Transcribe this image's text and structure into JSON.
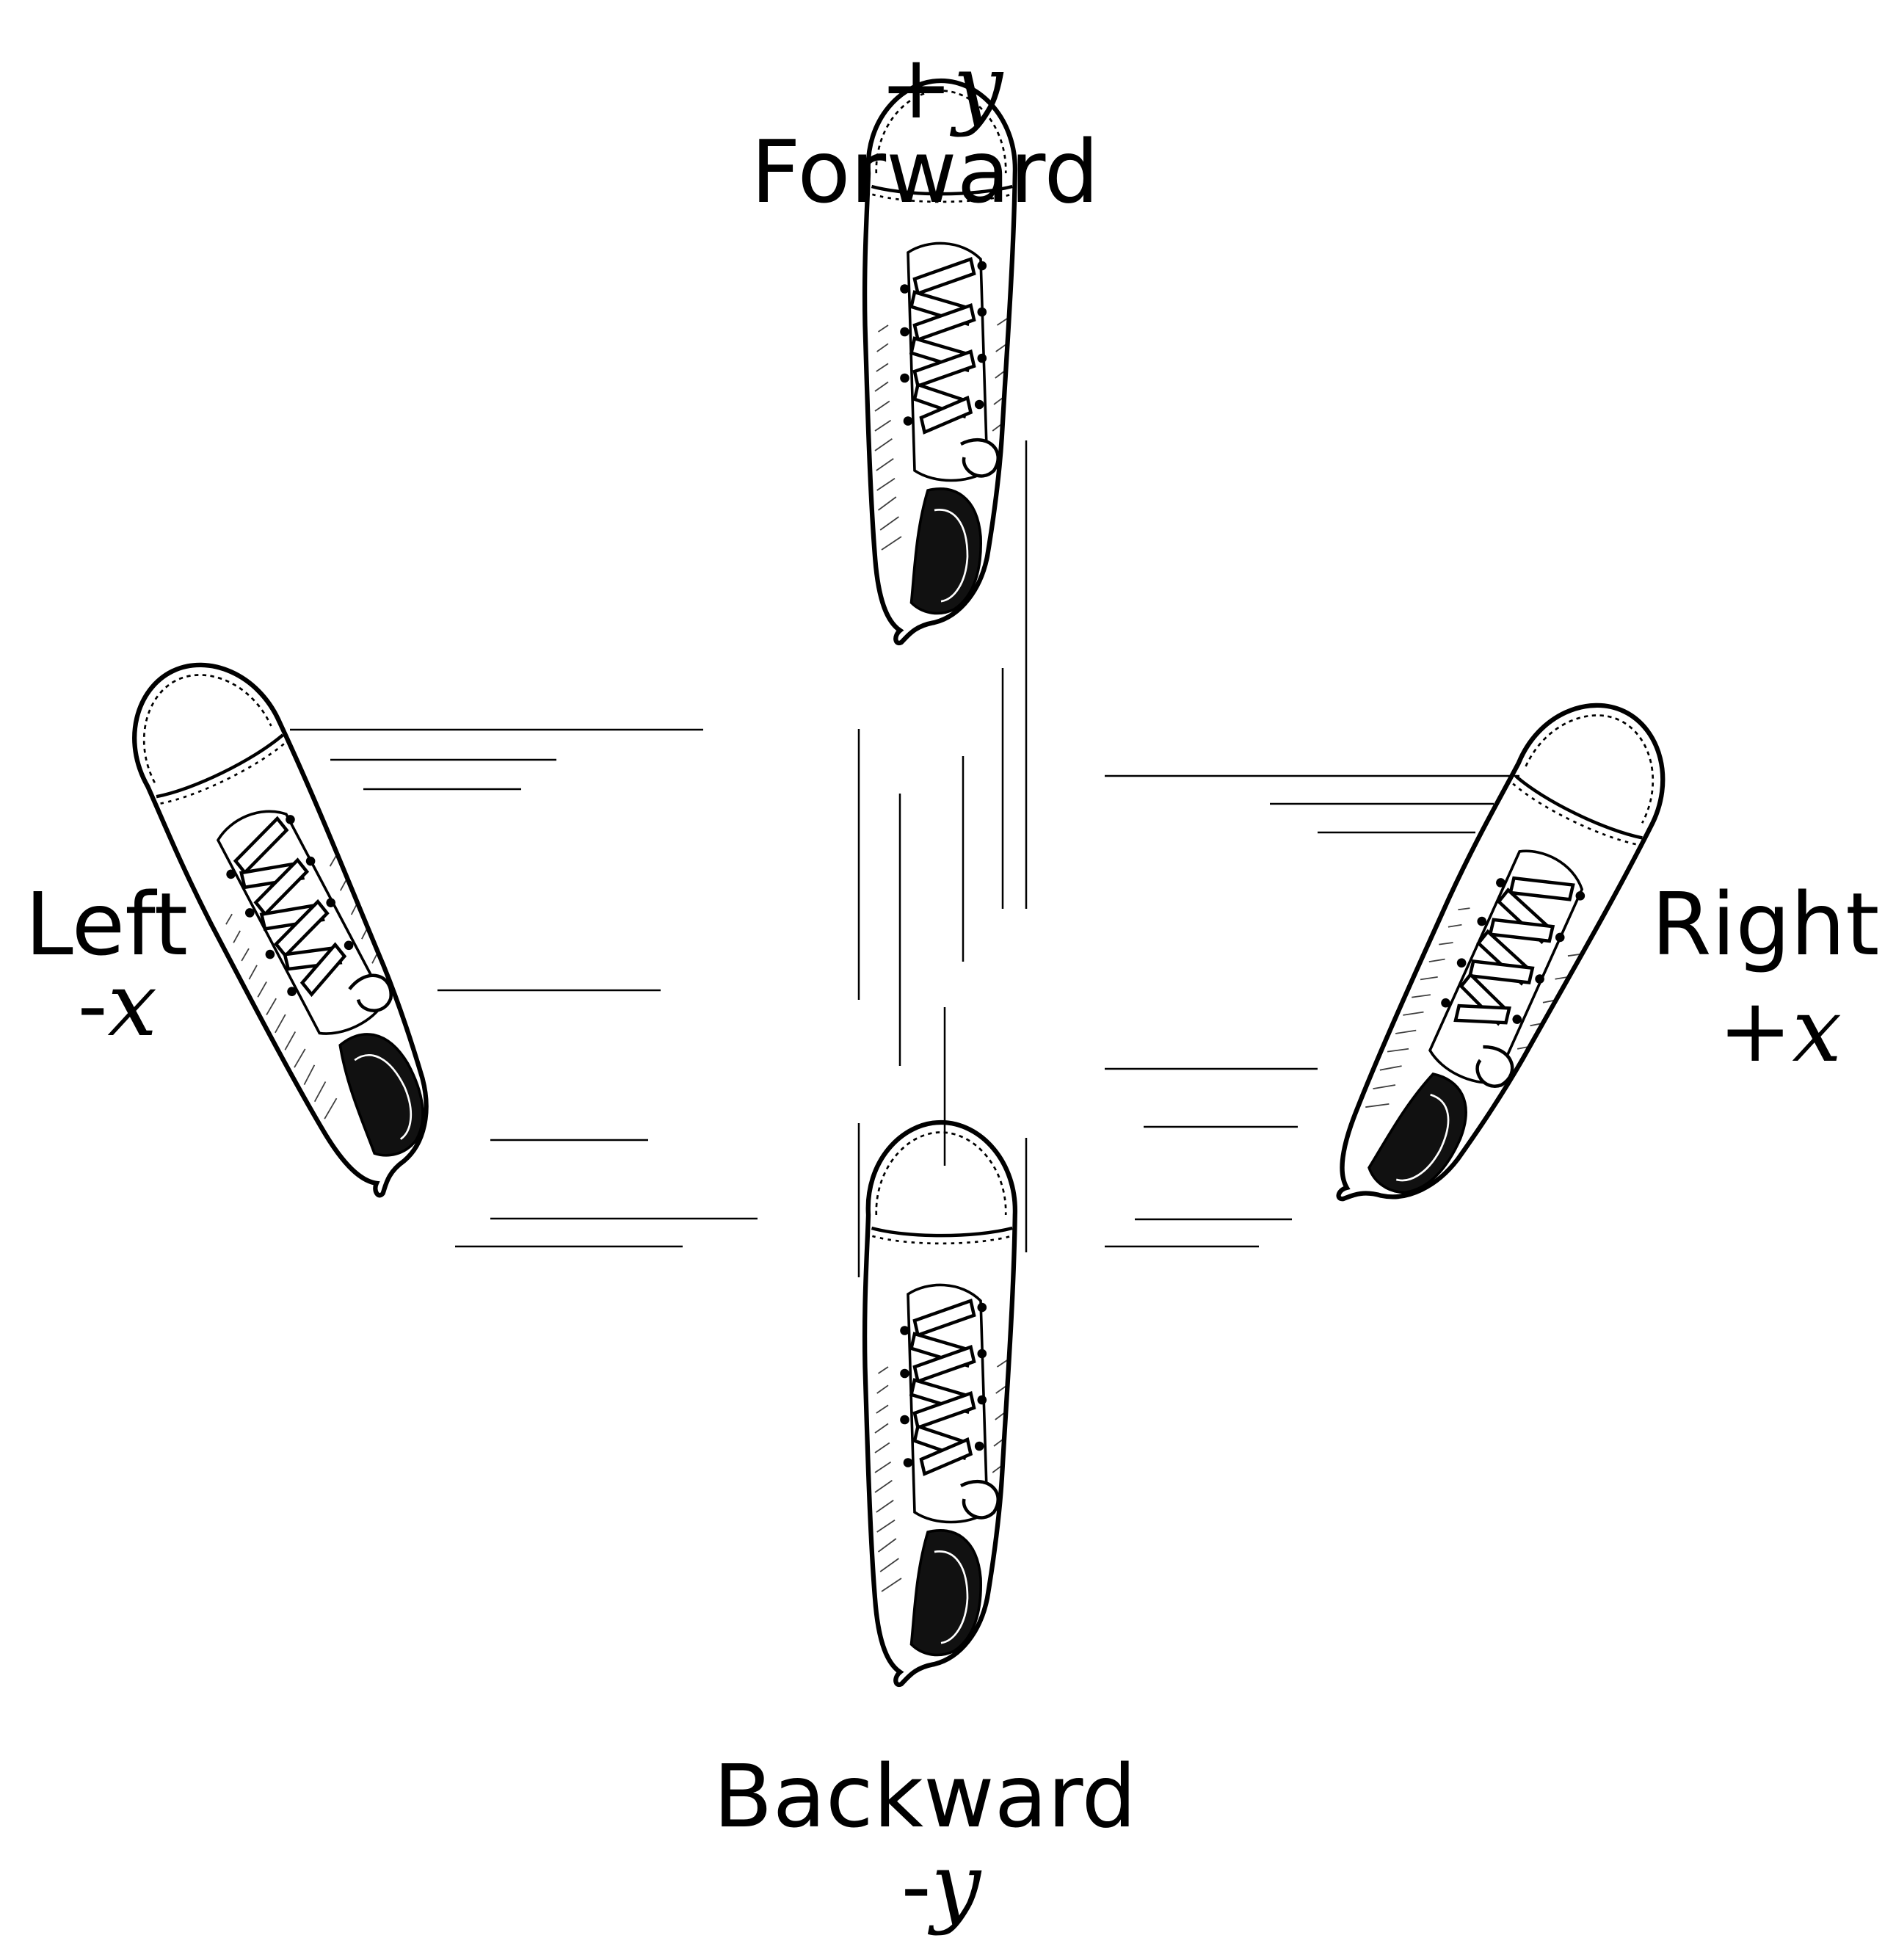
{
  "directions": {
    "forward": {
      "label": "Forward",
      "sign": "+",
      "axis": "y"
    },
    "backward": {
      "label": "Backward",
      "sign": "-",
      "axis": "y"
    },
    "left": {
      "label": "Left",
      "sign": "-",
      "axis": "x"
    },
    "right": {
      "label": "Right",
      "sign": "+",
      "axis": "x"
    }
  },
  "colors": {
    "ink": "#000000",
    "shoe_fill": "#ffffff",
    "shadow": "#1a1a1a"
  },
  "icons": [
    "sneaker-icon",
    "motion-lines"
  ]
}
